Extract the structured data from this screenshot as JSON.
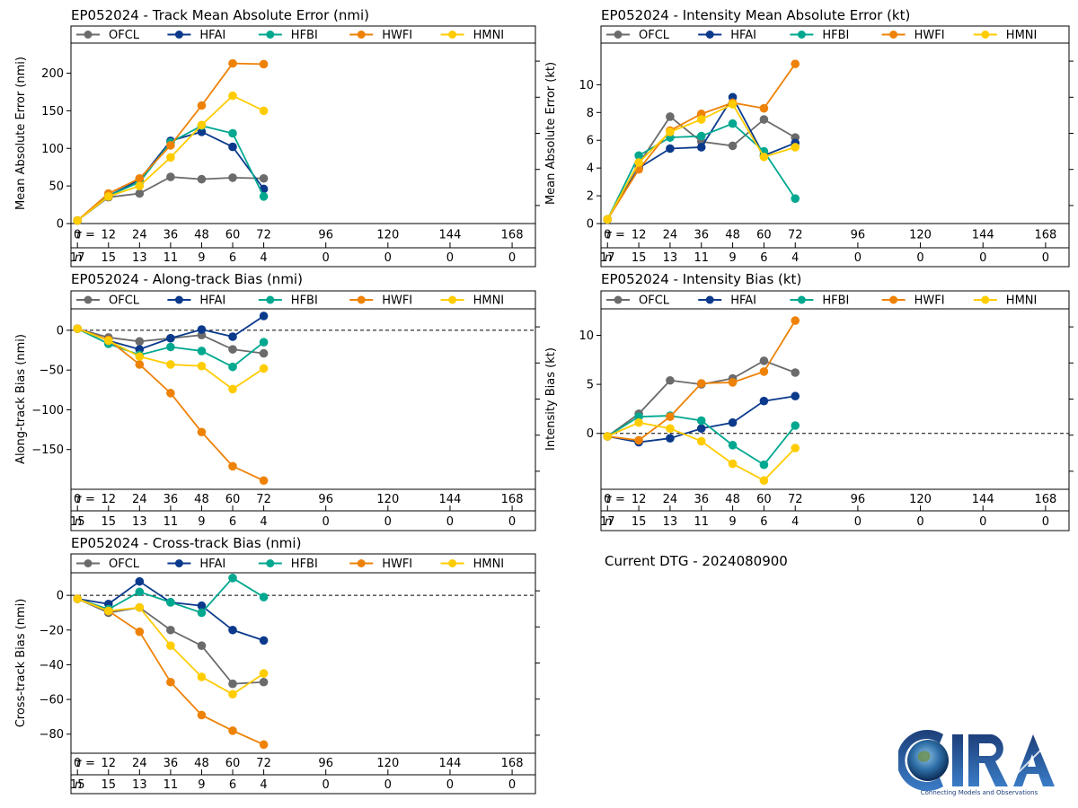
{
  "dtg_label": "Current DTG - 2024080900",
  "logo": {
    "text": "CIRA",
    "tagline": "Connecting Models and Observations"
  },
  "colors": {
    "OFCL": "#6b6b6b",
    "HFAI": "#0b3a8c",
    "HFBI": "#00a88f",
    "HWFI": "#ee8207",
    "HMNI": "#ffcc00"
  },
  "legend": [
    "OFCL",
    "HFAI",
    "HFBI",
    "HWFI",
    "HMNI"
  ],
  "tau_ticks": [
    0,
    12,
    24,
    36,
    48,
    60,
    72,
    96,
    120,
    144,
    168
  ],
  "chart_data": [
    {
      "id": "track_mae",
      "type": "line",
      "title": "EP052024 - Track Mean Absolute Error (nmi)",
      "ylabel": "Mean Absolute Error (nmi)",
      "ylim": [
        0,
        240
      ],
      "yticks": [
        0,
        50,
        100,
        150,
        200
      ],
      "zero_line": false,
      "x": [
        0,
        12,
        24,
        36,
        48,
        60,
        72
      ],
      "n": [
        17,
        15,
        13,
        11,
        9,
        6,
        4,
        0,
        0,
        0,
        0
      ],
      "series": [
        {
          "name": "OFCL",
          "values": [
            4,
            35,
            40,
            62,
            59,
            61,
            60
          ]
        },
        {
          "name": "HFAI",
          "values": [
            4,
            37,
            58,
            110,
            122,
            102,
            46
          ]
        },
        {
          "name": "HFBI",
          "values": [
            4,
            37,
            55,
            108,
            130,
            120,
            36
          ]
        },
        {
          "name": "HWFI",
          "values": [
            4,
            40,
            60,
            104,
            157,
            213,
            212
          ]
        },
        {
          "name": "HMNI",
          "values": [
            4,
            36,
            50,
            88,
            131,
            170,
            150
          ]
        }
      ]
    },
    {
      "id": "int_mae",
      "type": "line",
      "title": "EP052024 - Intensity Mean Absolute Error (kt)",
      "ylabel": "Mean Absolute Error (kt)",
      "ylim": [
        0,
        13
      ],
      "yticks": [
        0,
        2,
        4,
        6,
        8,
        10
      ],
      "zero_line": false,
      "x": [
        0,
        12,
        24,
        36,
        48,
        60,
        72
      ],
      "n": [
        17,
        15,
        13,
        11,
        9,
        6,
        4,
        0,
        0,
        0,
        0
      ],
      "series": [
        {
          "name": "OFCL",
          "values": [
            0.3,
            4.3,
            7.7,
            5.9,
            5.6,
            7.5,
            6.2
          ]
        },
        {
          "name": "HFAI",
          "values": [
            0.3,
            4.0,
            5.4,
            5.5,
            9.1,
            4.9,
            5.8
          ]
        },
        {
          "name": "HFBI",
          "values": [
            0.3,
            4.9,
            6.2,
            6.3,
            7.2,
            5.2,
            1.8
          ]
        },
        {
          "name": "HWFI",
          "values": [
            0.3,
            3.9,
            6.7,
            7.9,
            8.7,
            8.3,
            11.5
          ]
        },
        {
          "name": "HMNI",
          "values": [
            0.3,
            4.4,
            6.6,
            7.5,
            8.6,
            4.8,
            5.5
          ]
        }
      ]
    },
    {
      "id": "along_bias",
      "type": "line",
      "title": "EP052024 - Along-track Bias (nmi)",
      "ylabel": "Along-track Bias (nmi)",
      "ylim": [
        -200,
        27
      ],
      "yticks": [
        0,
        -50,
        -100,
        -150
      ],
      "zero_line": true,
      "x": [
        0,
        12,
        24,
        36,
        48,
        60,
        72
      ],
      "n": [
        15,
        15,
        13,
        11,
        9,
        6,
        4,
        0,
        0,
        0,
        0
      ],
      "series": [
        {
          "name": "OFCL",
          "values": [
            2,
            -9,
            -14,
            -10,
            -6,
            -24,
            -29
          ]
        },
        {
          "name": "HFAI",
          "values": [
            2,
            -13,
            -24,
            -10,
            1,
            -8,
            18
          ]
        },
        {
          "name": "HFBI",
          "values": [
            2,
            -17,
            -31,
            -21,
            -26,
            -46,
            -15
          ]
        },
        {
          "name": "HWFI",
          "values": [
            2,
            -12,
            -43,
            -79,
            -128,
            -171,
            -189
          ]
        },
        {
          "name": "HMNI",
          "values": [
            2,
            -13,
            -33,
            -43,
            -45,
            -74,
            -48
          ]
        }
      ]
    },
    {
      "id": "int_bias",
      "type": "line",
      "title": "EP052024 - Intensity Bias (kt)",
      "ylabel": "Intensity Bias (kt)",
      "ylim": [
        -5.7,
        12.7
      ],
      "yticks": [
        0,
        5,
        10
      ],
      "zero_line": true,
      "x": [
        0,
        12,
        24,
        36,
        48,
        60,
        72
      ],
      "n": [
        17,
        15,
        13,
        11,
        9,
        6,
        4,
        0,
        0,
        0,
        0
      ],
      "series": [
        {
          "name": "OFCL",
          "values": [
            -0.3,
            2.0,
            5.4,
            5.0,
            5.6,
            7.4,
            6.2
          ]
        },
        {
          "name": "HFAI",
          "values": [
            -0.3,
            -0.9,
            -0.5,
            0.5,
            1.1,
            3.3,
            3.8
          ]
        },
        {
          "name": "HFBI",
          "values": [
            -0.3,
            1.7,
            1.8,
            1.3,
            -1.2,
            -3.2,
            0.8
          ]
        },
        {
          "name": "HWFI",
          "values": [
            -0.3,
            -0.7,
            1.7,
            5.1,
            5.2,
            6.3,
            11.5
          ]
        },
        {
          "name": "HMNI",
          "values": [
            -0.3,
            1.1,
            0.5,
            -0.8,
            -3.1,
            -4.8,
            -1.5
          ]
        }
      ]
    },
    {
      "id": "cross_bias",
      "type": "line",
      "title": "EP052024 - Cross-track Bias (nmi)",
      "ylabel": "Cross-track Bias (nmi)",
      "ylim": [
        -91,
        13
      ],
      "yticks": [
        0,
        -20,
        -40,
        -60,
        -80
      ],
      "zero_line": true,
      "x": [
        0,
        12,
        24,
        36,
        48,
        60,
        72
      ],
      "n": [
        15,
        15,
        13,
        11,
        9,
        6,
        4,
        0,
        0,
        0,
        0
      ],
      "series": [
        {
          "name": "OFCL",
          "values": [
            -2,
            -10,
            -7,
            -20,
            -29,
            -51,
            -50
          ]
        },
        {
          "name": "HFAI",
          "values": [
            -2,
            -5,
            8,
            -4,
            -6,
            -20,
            -26
          ]
        },
        {
          "name": "HFBI",
          "values": [
            -2,
            -8,
            2,
            -4,
            -10,
            10,
            -1
          ]
        },
        {
          "name": "HWFI",
          "values": [
            -2,
            -9,
            -21,
            -50,
            -69,
            -78,
            -86
          ]
        },
        {
          "name": "HMNI",
          "values": [
            -2,
            -9,
            -7,
            -29,
            -47,
            -57,
            -45
          ]
        }
      ]
    }
  ]
}
